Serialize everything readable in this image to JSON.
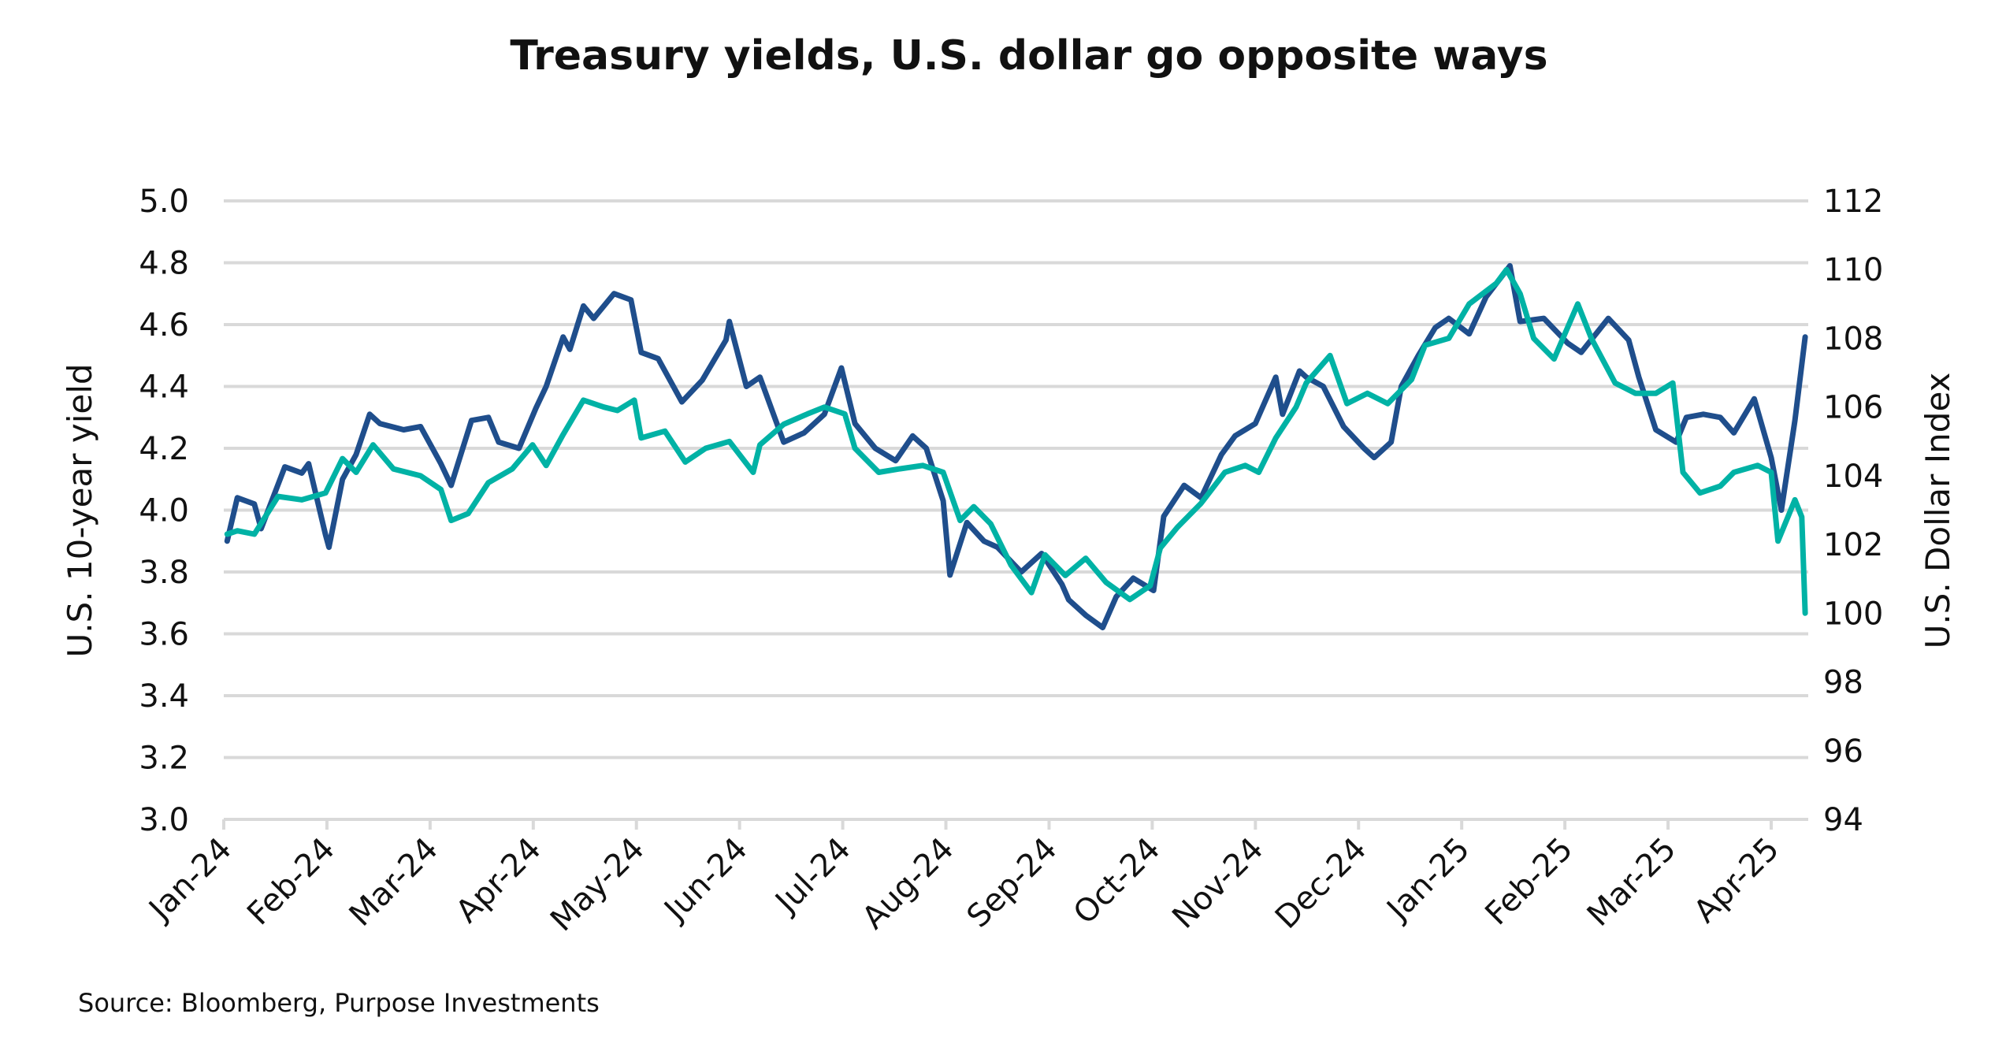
{
  "chart_data": {
    "type": "line",
    "title": "Treasury yields, U.S. dollar go opposite ways",
    "source": "Source: Bloomberg, Purpose Investments",
    "ylabel_left": "U.S. 10-year yield",
    "ylabel_right": "U.S. Dollar Index",
    "ylim_left": [
      3.0,
      5.0
    ],
    "ylim_right": [
      94,
      112
    ],
    "yticks_left": [
      "3.0",
      "3.2",
      "3.4",
      "3.6",
      "3.8",
      "4.0",
      "4.2",
      "4.4",
      "4.6",
      "4.8",
      "5.0"
    ],
    "yticks_right": [
      "94",
      "96",
      "98",
      "100",
      "102",
      "104",
      "106",
      "108",
      "110",
      "112"
    ],
    "xticks": [
      "Jan-24",
      "Feb-24",
      "Mar-24",
      "Apr-24",
      "May-24",
      "Jun-24",
      "Jul-24",
      "Aug-24",
      "Sep-24",
      "Oct-24",
      "Nov-24",
      "Dec-24",
      "Jan-25",
      "Feb-25",
      "Mar-25",
      "Apr-25"
    ],
    "grid": true,
    "legend": "none",
    "series": [
      {
        "axis": "left",
        "color": "#1f4e8c",
        "points": [
          [
            "2024-01-02",
            3.9
          ],
          [
            "2024-01-05",
            4.04
          ],
          [
            "2024-01-10",
            4.02
          ],
          [
            "2024-01-12",
            3.94
          ],
          [
            "2024-01-19",
            4.14
          ],
          [
            "2024-01-24",
            4.12
          ],
          [
            "2024-01-26",
            4.15
          ],
          [
            "2024-01-31",
            3.92
          ],
          [
            "2024-02-01",
            3.88
          ],
          [
            "2024-02-05",
            4.1
          ],
          [
            "2024-02-09",
            4.18
          ],
          [
            "2024-02-13",
            4.31
          ],
          [
            "2024-02-16",
            4.28
          ],
          [
            "2024-02-23",
            4.26
          ],
          [
            "2024-02-28",
            4.27
          ],
          [
            "2024-03-05",
            4.15
          ],
          [
            "2024-03-08",
            4.08
          ],
          [
            "2024-03-14",
            4.29
          ],
          [
            "2024-03-19",
            4.3
          ],
          [
            "2024-03-22",
            4.22
          ],
          [
            "2024-03-28",
            4.2
          ],
          [
            "2024-04-02",
            4.33
          ],
          [
            "2024-04-05",
            4.4
          ],
          [
            "2024-04-10",
            4.56
          ],
          [
            "2024-04-12",
            4.52
          ],
          [
            "2024-04-16",
            4.66
          ],
          [
            "2024-04-19",
            4.62
          ],
          [
            "2024-04-25",
            4.7
          ],
          [
            "2024-04-30",
            4.68
          ],
          [
            "2024-05-03",
            4.51
          ],
          [
            "2024-05-08",
            4.49
          ],
          [
            "2024-05-15",
            4.35
          ],
          [
            "2024-05-21",
            4.42
          ],
          [
            "2024-05-28",
            4.55
          ],
          [
            "2024-05-29",
            4.61
          ],
          [
            "2024-06-03",
            4.4
          ],
          [
            "2024-06-07",
            4.43
          ],
          [
            "2024-06-12",
            4.28
          ],
          [
            "2024-06-14",
            4.22
          ],
          [
            "2024-06-20",
            4.25
          ],
          [
            "2024-06-26",
            4.31
          ],
          [
            "2024-07-01",
            4.46
          ],
          [
            "2024-07-05",
            4.28
          ],
          [
            "2024-07-11",
            4.2
          ],
          [
            "2024-07-17",
            4.16
          ],
          [
            "2024-07-22",
            4.24
          ],
          [
            "2024-07-26",
            4.2
          ],
          [
            "2024-07-31",
            4.03
          ],
          [
            "2024-08-02",
            3.79
          ],
          [
            "2024-08-07",
            3.96
          ],
          [
            "2024-08-12",
            3.9
          ],
          [
            "2024-08-16",
            3.88
          ],
          [
            "2024-08-23",
            3.8
          ],
          [
            "2024-08-29",
            3.86
          ],
          [
            "2024-09-04",
            3.76
          ],
          [
            "2024-09-06",
            3.71
          ],
          [
            "2024-09-11",
            3.66
          ],
          [
            "2024-09-16",
            3.62
          ],
          [
            "2024-09-20",
            3.72
          ],
          [
            "2024-09-25",
            3.78
          ],
          [
            "2024-10-01",
            3.74
          ],
          [
            "2024-10-04",
            3.98
          ],
          [
            "2024-10-10",
            4.08
          ],
          [
            "2024-10-15",
            4.04
          ],
          [
            "2024-10-21",
            4.18
          ],
          [
            "2024-10-25",
            4.24
          ],
          [
            "2024-10-31",
            4.28
          ],
          [
            "2024-11-06",
            4.43
          ],
          [
            "2024-11-08",
            4.31
          ],
          [
            "2024-11-13",
            4.45
          ],
          [
            "2024-11-15",
            4.43
          ],
          [
            "2024-11-20",
            4.4
          ],
          [
            "2024-11-26",
            4.27
          ],
          [
            "2024-12-02",
            4.2
          ],
          [
            "2024-12-05",
            4.17
          ],
          [
            "2024-12-10",
            4.22
          ],
          [
            "2024-12-13",
            4.4
          ],
          [
            "2024-12-18",
            4.5
          ],
          [
            "2024-12-23",
            4.59
          ],
          [
            "2024-12-27",
            4.62
          ],
          [
            "2025-01-02",
            4.57
          ],
          [
            "2025-01-07",
            4.69
          ],
          [
            "2025-01-14",
            4.79
          ],
          [
            "2025-01-17",
            4.61
          ],
          [
            "2025-01-24",
            4.62
          ],
          [
            "2025-01-31",
            4.54
          ],
          [
            "2025-02-04",
            4.51
          ],
          [
            "2025-02-12",
            4.62
          ],
          [
            "2025-02-18",
            4.55
          ],
          [
            "2025-02-21",
            4.43
          ],
          [
            "2025-02-26",
            4.26
          ],
          [
            "2025-03-04",
            4.22
          ],
          [
            "2025-03-07",
            4.3
          ],
          [
            "2025-03-12",
            4.31
          ],
          [
            "2025-03-17",
            4.3
          ],
          [
            "2025-03-21",
            4.25
          ],
          [
            "2025-03-27",
            4.36
          ],
          [
            "2025-04-01",
            4.17
          ],
          [
            "2025-04-04",
            4.0
          ],
          [
            "2025-04-08",
            4.29
          ],
          [
            "2025-04-11",
            4.56
          ]
        ]
      },
      {
        "axis": "right",
        "color": "#00b2a5",
        "points": [
          [
            "2024-01-02",
            102.3
          ],
          [
            "2024-01-05",
            102.4
          ],
          [
            "2024-01-10",
            102.3
          ],
          [
            "2024-01-17",
            103.4
          ],
          [
            "2024-01-24",
            103.3
          ],
          [
            "2024-01-31",
            103.5
          ],
          [
            "2024-02-05",
            104.5
          ],
          [
            "2024-02-09",
            104.1
          ],
          [
            "2024-02-14",
            104.9
          ],
          [
            "2024-02-20",
            104.2
          ],
          [
            "2024-02-28",
            104.0
          ],
          [
            "2024-03-05",
            103.6
          ],
          [
            "2024-03-08",
            102.7
          ],
          [
            "2024-03-13",
            102.9
          ],
          [
            "2024-03-19",
            103.8
          ],
          [
            "2024-03-26",
            104.2
          ],
          [
            "2024-04-01",
            104.9
          ],
          [
            "2024-04-05",
            104.3
          ],
          [
            "2024-04-10",
            105.2
          ],
          [
            "2024-04-16",
            106.2
          ],
          [
            "2024-04-22",
            106.0
          ],
          [
            "2024-04-26",
            105.9
          ],
          [
            "2024-05-01",
            106.2
          ],
          [
            "2024-05-03",
            105.1
          ],
          [
            "2024-05-10",
            105.3
          ],
          [
            "2024-05-16",
            104.4
          ],
          [
            "2024-05-22",
            104.8
          ],
          [
            "2024-05-29",
            105.0
          ],
          [
            "2024-06-05",
            104.1
          ],
          [
            "2024-06-07",
            104.9
          ],
          [
            "2024-06-14",
            105.5
          ],
          [
            "2024-06-21",
            105.8
          ],
          [
            "2024-06-26",
            106.0
          ],
          [
            "2024-07-02",
            105.8
          ],
          [
            "2024-07-05",
            104.8
          ],
          [
            "2024-07-12",
            104.1
          ],
          [
            "2024-07-18",
            104.2
          ],
          [
            "2024-07-25",
            104.3
          ],
          [
            "2024-07-31",
            104.1
          ],
          [
            "2024-08-05",
            102.7
          ],
          [
            "2024-08-09",
            103.1
          ],
          [
            "2024-08-14",
            102.6
          ],
          [
            "2024-08-20",
            101.4
          ],
          [
            "2024-08-26",
            100.6
          ],
          [
            "2024-08-30",
            101.7
          ],
          [
            "2024-09-05",
            101.1
          ],
          [
            "2024-09-11",
            101.6
          ],
          [
            "2024-09-17",
            100.9
          ],
          [
            "2024-09-24",
            100.4
          ],
          [
            "2024-09-30",
            100.8
          ],
          [
            "2024-10-03",
            101.9
          ],
          [
            "2024-10-08",
            102.5
          ],
          [
            "2024-10-15",
            103.2
          ],
          [
            "2024-10-22",
            104.1
          ],
          [
            "2024-10-28",
            104.3
          ],
          [
            "2024-11-01",
            104.1
          ],
          [
            "2024-11-06",
            105.1
          ],
          [
            "2024-11-12",
            106.0
          ],
          [
            "2024-11-15",
            106.7
          ],
          [
            "2024-11-22",
            107.5
          ],
          [
            "2024-11-27",
            106.1
          ],
          [
            "2024-12-03",
            106.4
          ],
          [
            "2024-12-09",
            106.1
          ],
          [
            "2024-12-16",
            106.8
          ],
          [
            "2024-12-20",
            107.8
          ],
          [
            "2024-12-27",
            108.0
          ],
          [
            "2025-01-02",
            109.0
          ],
          [
            "2025-01-10",
            109.6
          ],
          [
            "2025-01-13",
            110.0
          ],
          [
            "2025-01-17",
            109.3
          ],
          [
            "2025-01-21",
            108.0
          ],
          [
            "2025-01-27",
            107.4
          ],
          [
            "2025-02-03",
            109.0
          ],
          [
            "2025-02-07",
            108.0
          ],
          [
            "2025-02-14",
            106.7
          ],
          [
            "2025-02-20",
            106.4
          ],
          [
            "2025-02-26",
            106.4
          ],
          [
            "2025-03-03",
            106.7
          ],
          [
            "2025-03-06",
            104.1
          ],
          [
            "2025-03-11",
            103.5
          ],
          [
            "2025-03-17",
            103.7
          ],
          [
            "2025-03-21",
            104.1
          ],
          [
            "2025-03-28",
            104.3
          ],
          [
            "2025-04-01",
            104.1
          ],
          [
            "2025-04-03",
            102.1
          ],
          [
            "2025-04-08",
            103.3
          ],
          [
            "2025-04-10",
            102.8
          ],
          [
            "2025-04-11",
            100.0
          ]
        ]
      }
    ]
  }
}
